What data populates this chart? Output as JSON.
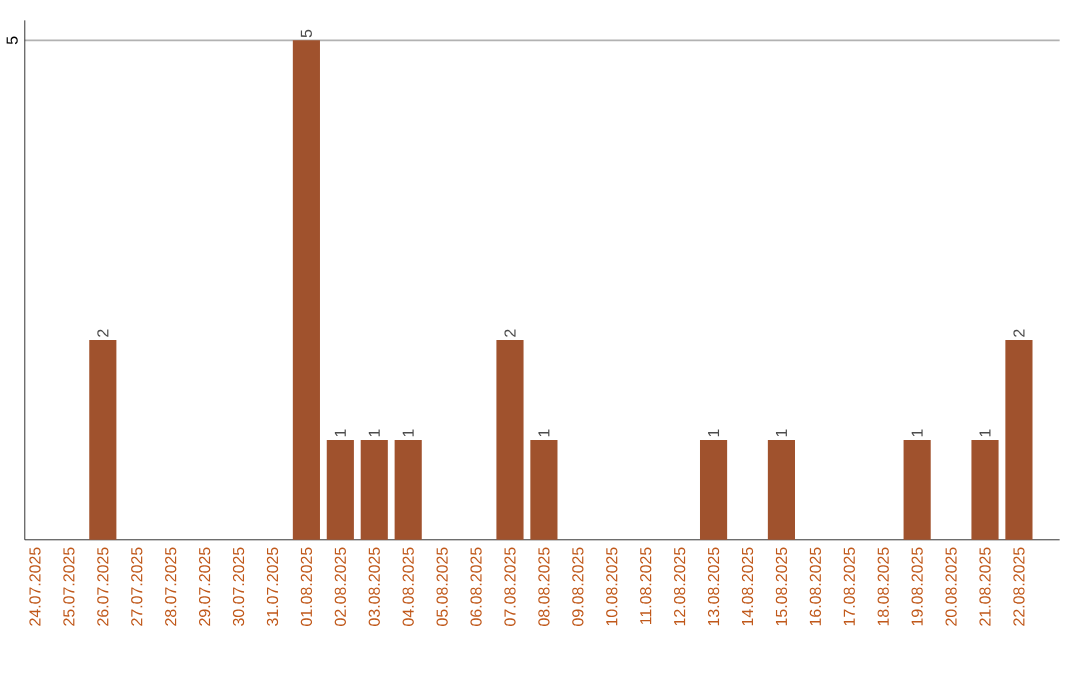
{
  "chart_data": {
    "type": "bar",
    "categories": [
      "24.07.2025",
      "25.07.2025",
      "26.07.2025",
      "27.07.2025",
      "28.07.2025",
      "29.07.2025",
      "30.07.2025",
      "31.07.2025",
      "01.08.2025",
      "02.08.2025",
      "03.08.2025",
      "04.08.2025",
      "05.08.2025",
      "06.08.2025",
      "07.08.2025",
      "08.08.2025",
      "09.08.2025",
      "10.08.2025",
      "11.08.2025",
      "12.08.2025",
      "13.08.2025",
      "14.08.2025",
      "15.08.2025",
      "16.08.2025",
      "17.08.2025",
      "18.08.2025",
      "19.08.2025",
      "20.08.2025",
      "21.08.2025",
      "22.08.2025"
    ],
    "values": [
      0,
      0,
      2,
      0,
      0,
      0,
      0,
      0,
      5,
      1,
      1,
      1,
      0,
      0,
      2,
      1,
      0,
      0,
      0,
      0,
      1,
      0,
      1,
      0,
      0,
      0,
      1,
      0,
      1,
      2
    ],
    "value_labels": [
      null,
      null,
      "2",
      null,
      null,
      null,
      null,
      null,
      "5",
      "1",
      "1",
      "1",
      null,
      null,
      "2",
      "1",
      null,
      null,
      null,
      null,
      "1",
      null,
      "1",
      null,
      null,
      null,
      "1",
      null,
      "1",
      "2"
    ],
    "color": "#a0522d",
    "ylim": [
      0,
      5.2
    ],
    "yticks": [
      5
    ],
    "grid": "y"
  }
}
